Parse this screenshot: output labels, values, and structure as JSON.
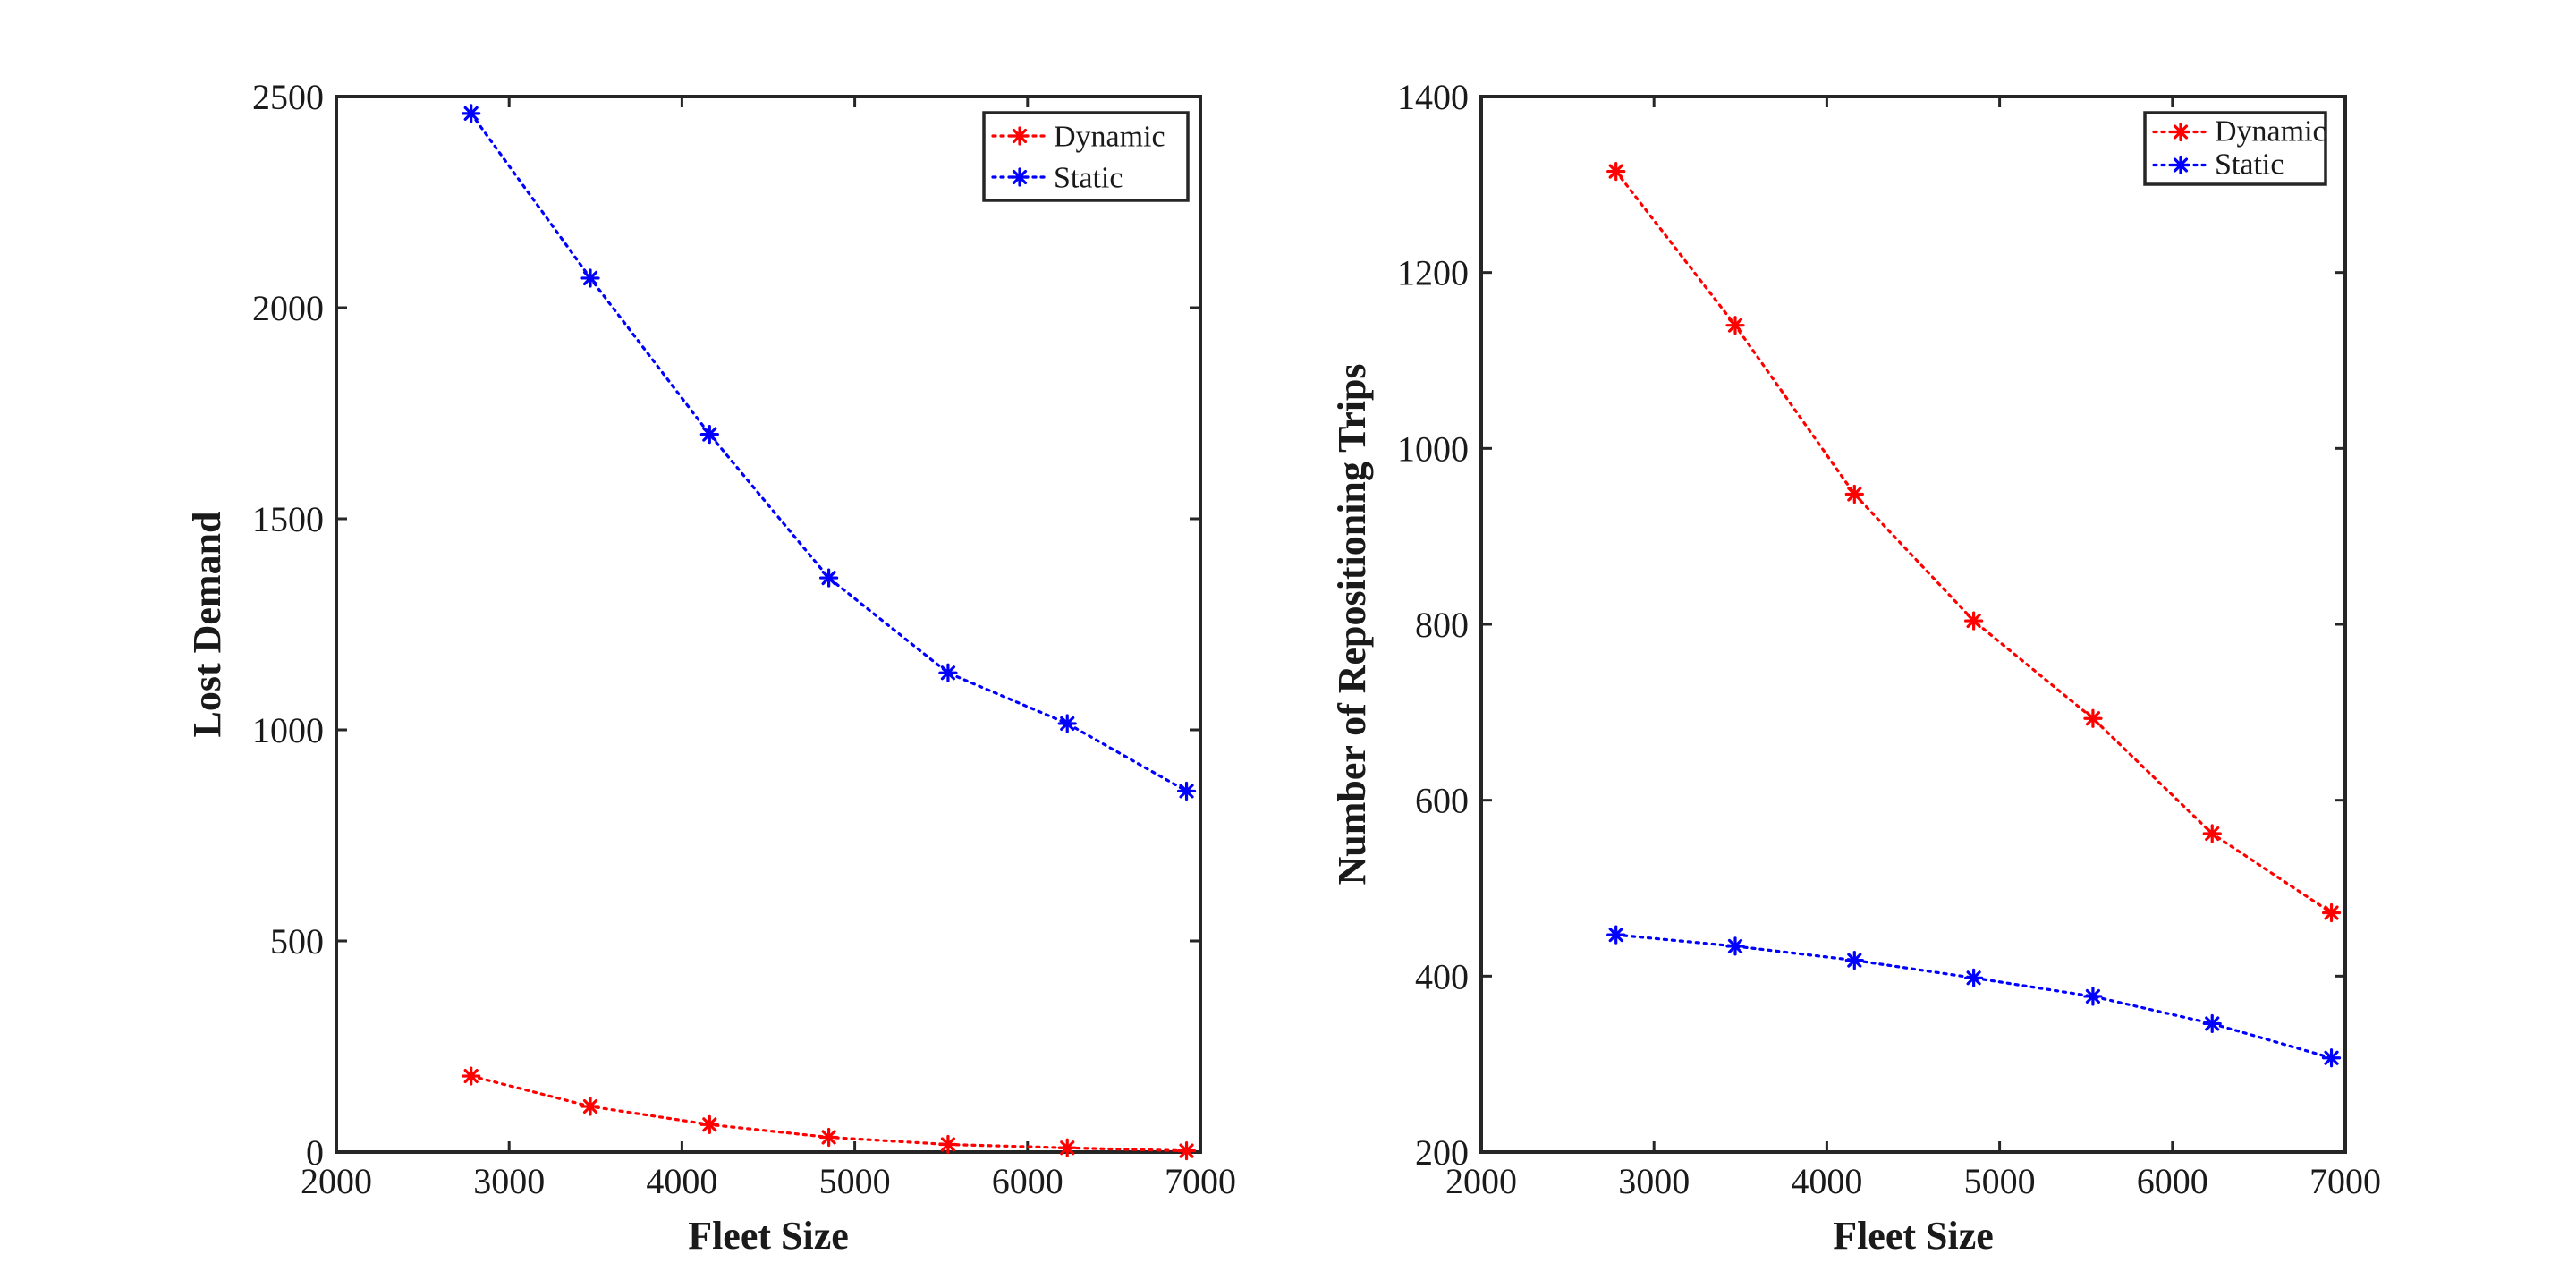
{
  "chart_data": [
    {
      "type": "line",
      "title": "",
      "xlabel": "Fleet Size",
      "ylabel": "Lost Demand",
      "xlim": [
        2000,
        7000
      ],
      "ylim": [
        0,
        2500
      ],
      "xticks": [
        2000,
        3000,
        4000,
        5000,
        6000,
        7000
      ],
      "yticks": [
        0,
        500,
        1000,
        1500,
        2000,
        2500
      ],
      "grid": false,
      "legend_position": "top-right",
      "x": [
        2780,
        3470,
        4160,
        4850,
        5540,
        6230,
        6920
      ],
      "series": [
        {
          "name": "Dynamic",
          "color": "#ff0000",
          "marker": "asterisk",
          "line_style": "dotted",
          "values": [
            180,
            108,
            65,
            35,
            18,
            10,
            3
          ]
        },
        {
          "name": "Static",
          "color": "#0000ff",
          "marker": "asterisk",
          "line_style": "dotted",
          "values": [
            2460,
            2070,
            1700,
            1360,
            1135,
            1015,
            855
          ]
        }
      ]
    },
    {
      "type": "line",
      "title": "",
      "xlabel": "Fleet Size",
      "ylabel": "Number of Repositioning Trips",
      "xlim": [
        2000,
        7000
      ],
      "ylim": [
        200,
        1400
      ],
      "xticks": [
        2000,
        3000,
        4000,
        5000,
        6000,
        7000
      ],
      "yticks": [
        200,
        400,
        600,
        800,
        1000,
        1200,
        1400
      ],
      "grid": false,
      "legend_position": "top-right",
      "x": [
        2780,
        3470,
        4160,
        4850,
        5540,
        6230,
        6920
      ],
      "series": [
        {
          "name": "Dynamic",
          "color": "#ff0000",
          "marker": "asterisk",
          "line_style": "dotted",
          "values": [
            1315,
            1140,
            948,
            804,
            693,
            562,
            472
          ]
        },
        {
          "name": "Static",
          "color": "#0000ff",
          "marker": "asterisk",
          "line_style": "dotted",
          "values": [
            447,
            434,
            418,
            398,
            377,
            346,
            307
          ]
        }
      ]
    }
  ]
}
